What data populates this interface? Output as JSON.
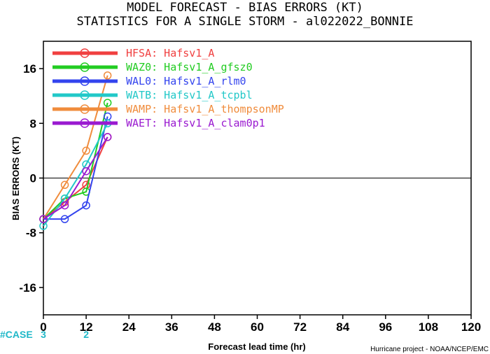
{
  "chart_data": {
    "type": "line",
    "title": "MODEL FORECAST - BIAS ERRORS (KT)",
    "subtitle": "STATISTICS FOR A SINGLE STORM - al022022_BONNIE",
    "xlabel": "Forecast lead time (hr)",
    "ylabel": "BIAS ERRORS (KT)",
    "credit": "Hurricane project - NOAA/NCEP/EMC",
    "xlim": [
      0,
      120
    ],
    "ylim": [
      -20,
      20
    ],
    "x_ticks": [
      "0",
      "12",
      "24",
      "36",
      "48",
      "60",
      "72",
      "84",
      "96",
      "108",
      "120"
    ],
    "y_ticks": [
      "16",
      "8",
      "0",
      "-8",
      "-16"
    ],
    "y_tick_values": [
      16,
      8,
      0,
      -8,
      -16
    ],
    "x_tick_values": [
      0,
      12,
      24,
      36,
      48,
      60,
      72,
      84,
      96,
      108,
      120
    ],
    "grid": false,
    "legend_position": "top-left",
    "series": [
      {
        "name": "HFSA:  Hafsv1_A",
        "color": "#f04040",
        "x": [
          0,
          6,
          12,
          18
        ],
        "y": [
          -6,
          -3.5,
          -1,
          6
        ]
      },
      {
        "name": "WAZ0:  Hafsv1_A_gfsz0",
        "color": "#22cc22",
        "x": [
          0,
          6,
          12,
          18
        ],
        "y": [
          -6,
          -3,
          -2,
          11
        ]
      },
      {
        "name": "WAL0:  Hafsv1_A_rlm0",
        "color": "#3344ee",
        "x": [
          0,
          6,
          12,
          18
        ],
        "y": [
          -6,
          -6,
          -4,
          9
        ]
      },
      {
        "name": "WATB:  Hafsv1_A_tcpbl",
        "color": "#22c8c8",
        "x": [
          0,
          6,
          12,
          18
        ],
        "y": [
          -7,
          -3,
          2,
          8
        ]
      },
      {
        "name": "WAMP:  Hafsv1_A_thompsonMP",
        "color": "#f08c3c",
        "x": [
          0,
          6,
          12,
          18
        ],
        "y": [
          -6,
          -1,
          4,
          15
        ]
      },
      {
        "name": "WAET:  Hafsv1_A_clam0p1",
        "color": "#9a1ad0",
        "x": [
          0,
          6,
          12,
          18
        ],
        "y": [
          -6,
          -4,
          1,
          6
        ]
      }
    ],
    "case_label": "#CASE",
    "case_color": "#20b8c8",
    "case_counts": [
      {
        "x": 0,
        "count": "3"
      },
      {
        "x": 12,
        "count": "2"
      }
    ]
  }
}
